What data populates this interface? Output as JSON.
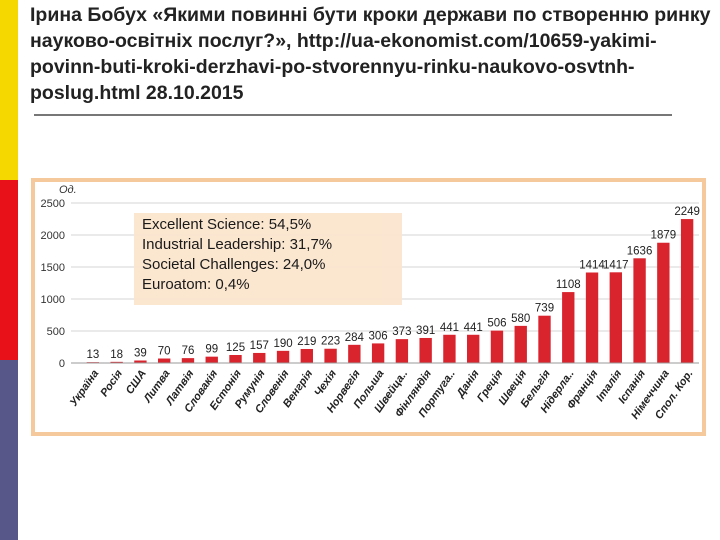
{
  "slide": {
    "title": "Ірина Бобух «Якими повинні бути кроки держави по створенню ринку науково-освітніх послуг?», http://ua-ekonomist.com/10659-yakimi-povinn-buti-kroki-derzhavi-po-stvorennyu-rinku-naukovo-osvtnh-poslug.html 28.10.2015",
    "colors": {
      "accent_yellow": "#f5d800",
      "accent_red": "#e8111a",
      "accent_blue": "#575789"
    }
  },
  "legend": {
    "items": [
      "Excellent Science: 54,5%",
      "Industrial Leadership: 31,7%",
      "Societal Challenges: 24,0%",
      "Euroatom: 0,4%"
    ]
  },
  "chart_data": {
    "type": "bar",
    "ylabel": "Од.",
    "ylim": [
      0,
      2500
    ],
    "yticks": [
      0,
      500,
      1000,
      1500,
      2000,
      2500
    ],
    "grid": true,
    "bar_color": "#d9232d",
    "categories": [
      "Україна",
      "Росія",
      "США",
      "Литва",
      "Латвія",
      "Словакія",
      "Естонія",
      "Румунія",
      "Словенія",
      "Венгрія",
      "Чехія",
      "Норвегія",
      "Польша",
      "Швейца..",
      "Фінляндія",
      "Португа..",
      "Данія",
      "Греція",
      "Швеція",
      "Бельгія",
      "Нідерла..",
      "Франція",
      "Італія",
      "Іспанія",
      "Німеччина",
      "Спол. Кор."
    ],
    "values": [
      13,
      18,
      39,
      70,
      76,
      99,
      125,
      157,
      190,
      219,
      223,
      284,
      306,
      373,
      391,
      441,
      441,
      506,
      580,
      739,
      1108,
      1414,
      1417,
      1636,
      1879,
      2249
    ]
  }
}
